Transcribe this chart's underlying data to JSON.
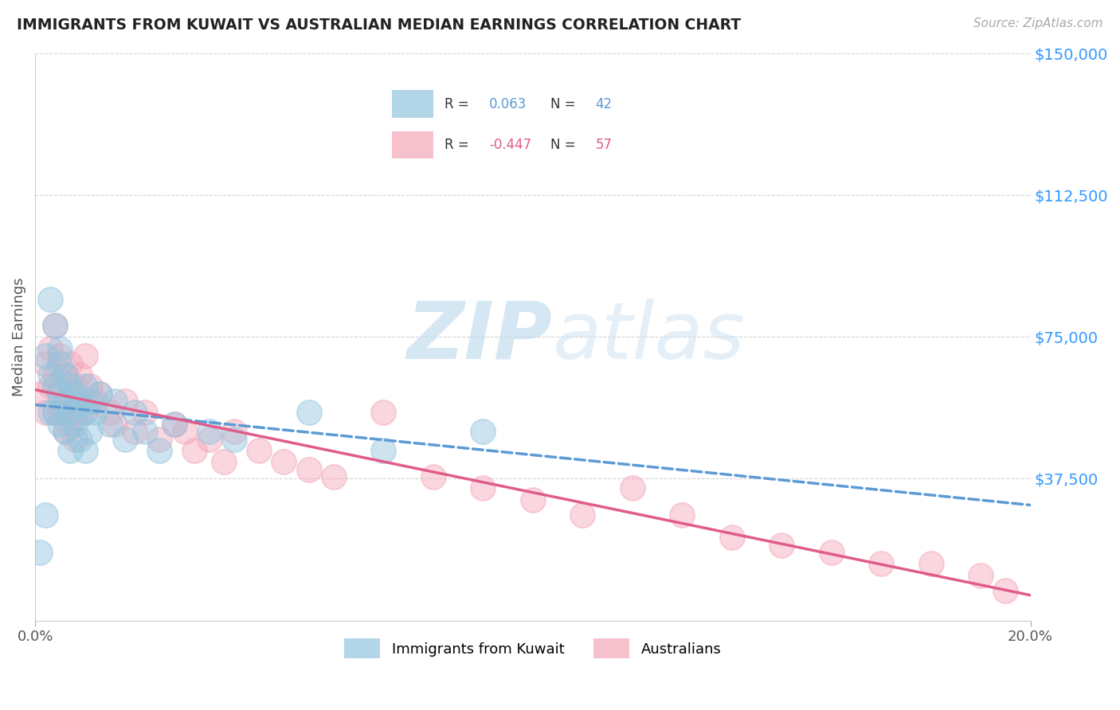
{
  "title": "IMMIGRANTS FROM KUWAIT VS AUSTRALIAN MEDIAN EARNINGS CORRELATION CHART",
  "source": "Source: ZipAtlas.com",
  "ylabel": "Median Earnings",
  "watermark_zip": "ZIP",
  "watermark_atlas": "atlas",
  "blue_label": "Immigrants from Kuwait",
  "pink_label": "Australians",
  "blue_R": 0.063,
  "blue_N": 42,
  "pink_R": -0.447,
  "pink_N": 57,
  "xlim": [
    0.0,
    0.2
  ],
  "ylim": [
    0,
    150000
  ],
  "yticks": [
    0,
    37500,
    75000,
    112500,
    150000
  ],
  "ytick_labels": [
    "",
    "$37,500",
    "$75,000",
    "$112,500",
    "$150,000"
  ],
  "xtick_labels": [
    "0.0%",
    "20.0%"
  ],
  "xticks": [
    0.0,
    0.2
  ],
  "blue_color": "#92c5de",
  "pink_color": "#f4a6b8",
  "blue_line_color": "#5b9bd5",
  "pink_line_color": "#e05c8a",
  "grid_color": "#d0d0d0",
  "title_color": "#222222",
  "axis_label_color": "#555555",
  "ytick_color": "#3399ff",
  "xtick_color": "#555555",
  "blue_scatter_x": [
    0.001,
    0.002,
    0.002,
    0.003,
    0.003,
    0.003,
    0.004,
    0.004,
    0.004,
    0.005,
    0.005,
    0.005,
    0.005,
    0.006,
    0.006,
    0.006,
    0.007,
    0.007,
    0.007,
    0.008,
    0.008,
    0.009,
    0.009,
    0.01,
    0.01,
    0.01,
    0.011,
    0.011,
    0.012,
    0.013,
    0.015,
    0.016,
    0.018,
    0.02,
    0.022,
    0.025,
    0.028,
    0.035,
    0.04,
    0.055,
    0.07,
    0.09
  ],
  "blue_scatter_y": [
    18000,
    28000,
    70000,
    85000,
    65000,
    55000,
    78000,
    62000,
    55000,
    68000,
    60000,
    72000,
    52000,
    58000,
    65000,
    50000,
    62000,
    55000,
    45000,
    60000,
    52000,
    57000,
    48000,
    55000,
    62000,
    45000,
    58000,
    50000,
    55000,
    60000,
    52000,
    58000,
    48000,
    55000,
    50000,
    45000,
    52000,
    50000,
    48000,
    55000,
    45000,
    50000
  ],
  "pink_scatter_x": [
    0.001,
    0.002,
    0.002,
    0.003,
    0.003,
    0.004,
    0.004,
    0.004,
    0.005,
    0.005,
    0.005,
    0.006,
    0.006,
    0.006,
    0.007,
    0.007,
    0.007,
    0.008,
    0.008,
    0.008,
    0.009,
    0.009,
    0.01,
    0.01,
    0.011,
    0.012,
    0.013,
    0.015,
    0.016,
    0.018,
    0.02,
    0.022,
    0.025,
    0.028,
    0.03,
    0.032,
    0.035,
    0.038,
    0.04,
    0.045,
    0.05,
    0.055,
    0.06,
    0.07,
    0.08,
    0.09,
    0.1,
    0.11,
    0.12,
    0.13,
    0.14,
    0.15,
    0.16,
    0.17,
    0.18,
    0.19,
    0.195
  ],
  "pink_scatter_y": [
    60000,
    68000,
    55000,
    72000,
    62000,
    78000,
    65000,
    55000,
    70000,
    62000,
    55000,
    65000,
    58000,
    50000,
    68000,
    60000,
    52000,
    62000,
    55000,
    48000,
    65000,
    55000,
    70000,
    55000,
    62000,
    58000,
    60000,
    55000,
    52000,
    58000,
    50000,
    55000,
    48000,
    52000,
    50000,
    45000,
    48000,
    42000,
    50000,
    45000,
    42000,
    40000,
    38000,
    55000,
    38000,
    35000,
    32000,
    28000,
    35000,
    28000,
    22000,
    20000,
    18000,
    15000,
    15000,
    12000,
    8000
  ]
}
